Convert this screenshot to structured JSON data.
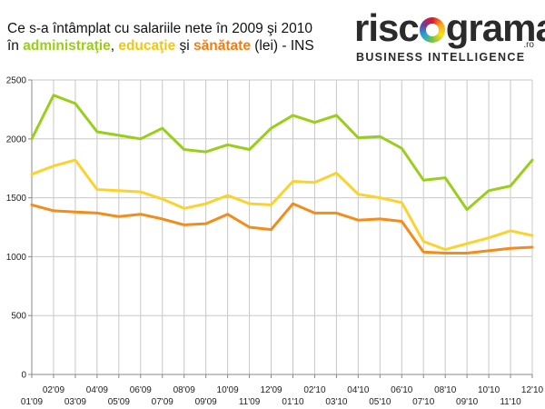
{
  "title": {
    "line1": "Ce s-a întâmplat cu salariile nete în 2009 şi 2010",
    "line2_prefix": "în ",
    "kw_admin": "administraţie",
    "sep1": ", ",
    "kw_edu": "educaţie",
    "sep2": " şi ",
    "kw_health": "sănătate",
    "line2_suffix": " (lei) - INS"
  },
  "logo": {
    "word_a": "risc",
    "word_b": "grama",
    "ro": ".ro",
    "tagline": "BUSINESS INTELLIGENCE"
  },
  "colors": {
    "administratie": "#9bcd1b",
    "educatie": "#fcd22d",
    "sanatate": "#f28c1b",
    "grid": "#c8c8c8"
  },
  "chart_data": {
    "type": "line",
    "title": "Ce s-a întâmplat cu salariile nete în 2009 şi 2010 în administraţie, educaţie şi sănătate (lei) - INS",
    "xlabel": "",
    "ylabel": "",
    "ylim": [
      0,
      2500
    ],
    "yticks": [
      0,
      500,
      1000,
      1500,
      2000,
      2500
    ],
    "grid": true,
    "legend": "none",
    "categories": [
      "01'09",
      "02'09",
      "03'09",
      "04'09",
      "05'09",
      "06'09",
      "07'09",
      "08'09",
      "09'09",
      "10'09",
      "11'09",
      "12'09",
      "01'10",
      "02'10",
      "03'10",
      "04'10",
      "05'10",
      "06'10",
      "07'10",
      "08'10",
      "09'10",
      "10'10",
      "11'10",
      "12'10"
    ],
    "series": [
      {
        "color": "#9bcd1b",
        "values": [
          2000,
          2370,
          2300,
          2060,
          2030,
          2000,
          2090,
          1910,
          1890,
          1950,
          1910,
          2090,
          2200,
          2140,
          2200,
          2010,
          2020,
          1920,
          1650,
          1670,
          1400,
          1560,
          1600,
          1820
        ]
      },
      {
        "color": "#fcd22d",
        "values": [
          1700,
          1770,
          1820,
          1570,
          1560,
          1550,
          1490,
          1410,
          1450,
          1520,
          1450,
          1440,
          1640,
          1630,
          1710,
          1530,
          1500,
          1460,
          1130,
          1060,
          1110,
          1160,
          1220,
          1180
        ]
      },
      {
        "color": "#f28c1b",
        "values": [
          1440,
          1390,
          1380,
          1370,
          1340,
          1360,
          1320,
          1270,
          1280,
          1360,
          1250,
          1230,
          1450,
          1370,
          1370,
          1310,
          1320,
          1300,
          1040,
          1030,
          1030,
          1050,
          1070,
          1080
        ]
      }
    ]
  }
}
